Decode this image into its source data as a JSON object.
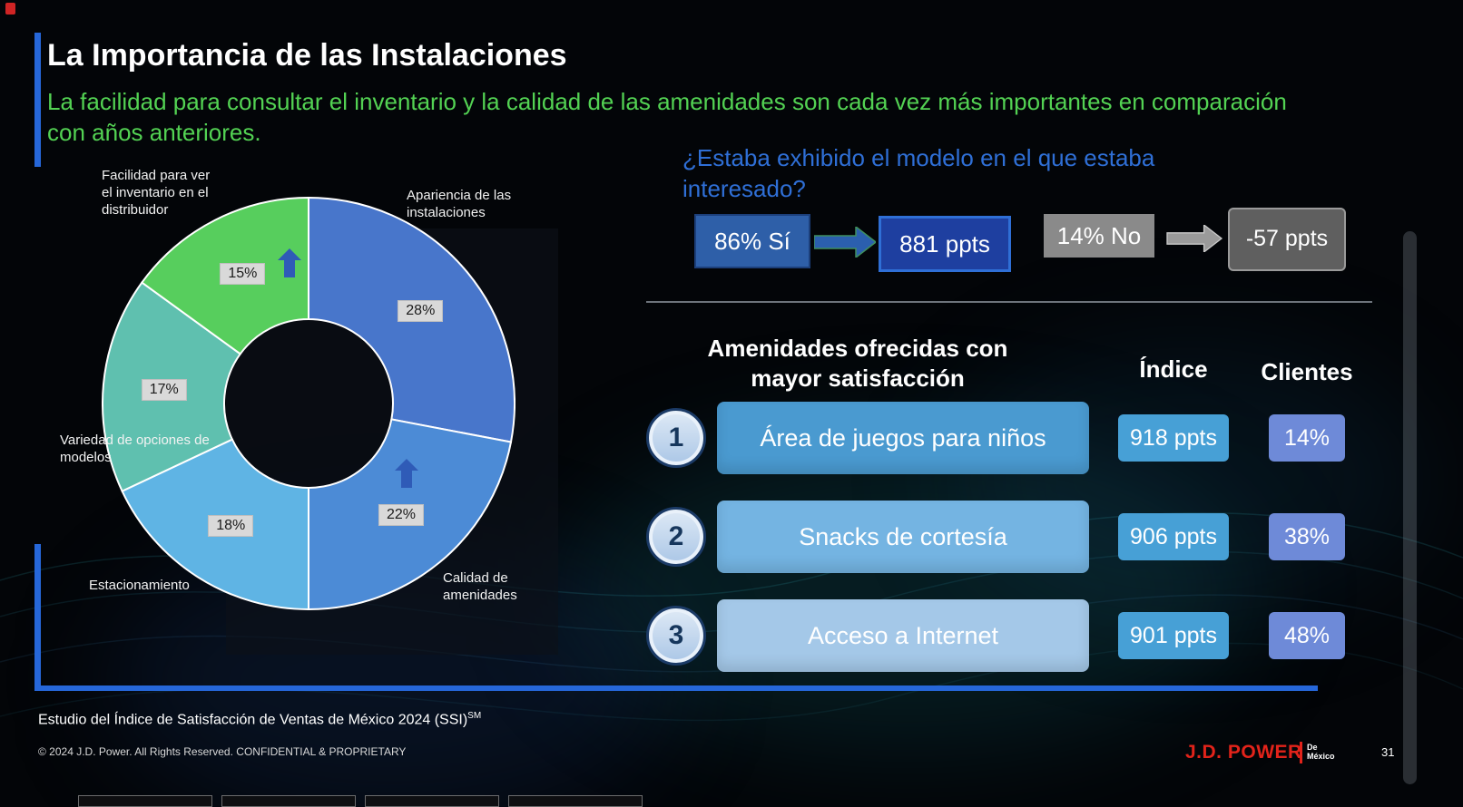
{
  "slide": {
    "title": "La Importancia de las Instalaciones",
    "subtitle": "La facilidad para consultar el inventario y la calidad de las amenidades son cada vez más importantes en comparación con años anteriores.",
    "accent_color": "#2667D9",
    "subtitle_color": "#53D253"
  },
  "chart_data": {
    "type": "pie",
    "variant": "donut",
    "unit": "%",
    "start": "top",
    "direction": "clockwise",
    "arrow_color": "#2F5BB7",
    "segments": [
      {
        "label": "Apariencia de las instalaciones",
        "value": 28,
        "color": "#4876CB",
        "arrow_up": false
      },
      {
        "label": "Calidad de amenidades",
        "value": 22,
        "color": "#4C8BD6",
        "arrow_up": true
      },
      {
        "label": "Estacionamiento",
        "value": 18,
        "color": "#5FB4E4",
        "arrow_up": false
      },
      {
        "label": "Variedad de opciones de modelos",
        "value": 17,
        "color": "#5FC0AF",
        "arrow_up": false
      },
      {
        "label": "Facilidad para ver el inventario en el distribuidor",
        "value": 15,
        "color": "#57CE5D",
        "arrow_up": true
      }
    ]
  },
  "question": {
    "text": "¿Estaba exhibido el modelo en el que estaba interesado?",
    "text_color": "#2F6FD6",
    "items": [
      {
        "label": "86% Sí",
        "value": "881 ppts",
        "label_bg": "#2E5FA8",
        "value_bg": "#1E3FA0",
        "value_border": "#2F6FD6",
        "arrow_color": "#2B5FAE"
      },
      {
        "label": "14% No",
        "value": "-57 ppts",
        "label_bg": "#8A8A8A",
        "value_bg": "#5F5F5F",
        "value_border": "#9A9A9A",
        "arrow_color": "#9A9A9A"
      }
    ]
  },
  "amenities": {
    "heading": "Amenidades ofrecidas con mayor satisfacción",
    "columns": {
      "indice": "Índice",
      "clientes": "Clientes"
    },
    "indice_bg": "#47A0D6",
    "clientes_bg": "#6E8AD8",
    "rows": [
      {
        "rank": "1",
        "label": "Área de juegos para niños",
        "indice": "918 ppts",
        "clientes": "14%",
        "bar_color": "#4A9AD0"
      },
      {
        "rank": "2",
        "label": "Snacks de cortesía",
        "indice": "906 ppts",
        "clientes": "38%",
        "bar_color": "#74B4E2"
      },
      {
        "rank": "3",
        "label": "Acceso a Internet",
        "indice": "901 ppts",
        "clientes": "48%",
        "bar_color": "#A4C8E8"
      }
    ]
  },
  "footer": {
    "source": "Estudio del Índice de Satisfacción de Ventas de México 2024 (SSI)",
    "source_sup": "SM",
    "copyright": "© 2024 J.D. Power. All Rights Reserved. CONFIDENTIAL & PROPRIETARY",
    "brand": "J.D. POWER",
    "brand_color": "#E2231A",
    "brand_sub_line1": "De",
    "brand_sub_line2": "México",
    "page_number": "31"
  }
}
